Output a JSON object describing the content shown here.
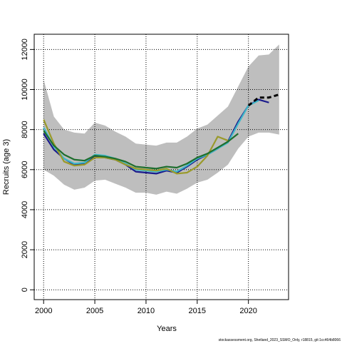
{
  "chart_data": {
    "type": "line",
    "xlabel": "Years",
    "ylabel": "Recruits (age 3)",
    "footer": "stockassessment.org, Shetland_2023_SSMO_Only, r18815, git:1cc464b8066",
    "x": [
      2000,
      2001,
      2002,
      2003,
      2004,
      2005,
      2006,
      2007,
      2008,
      2009,
      2010,
      2011,
      2012,
      2013,
      2014,
      2015,
      2016,
      2017,
      2018,
      2019,
      2020,
      2021,
      2022,
      2023
    ],
    "band": {
      "color": "#bebebe",
      "upper": [
        10500,
        8650,
        8000,
        7850,
        7800,
        8350,
        8200,
        7900,
        7650,
        7300,
        7250,
        7200,
        7350,
        7350,
        7650,
        8050,
        8250,
        8700,
        9150,
        10150,
        11150,
        11700,
        11750,
        12250
      ],
      "lower": [
        6000,
        5700,
        5250,
        5000,
        5100,
        5450,
        5500,
        5300,
        5100,
        4850,
        4850,
        4750,
        4900,
        4800,
        5050,
        5350,
        5500,
        5850,
        6250,
        7050,
        7650,
        7850,
        7850,
        7750
      ]
    },
    "series": [
      {
        "color": "#1a1a8c",
        "values": [
          7800,
          7000,
          6550,
          6250,
          6300,
          6650,
          6600,
          6500,
          6250,
          5900,
          5850,
          5800,
          5950,
          5850,
          6150,
          6500,
          6750,
          7050,
          7400,
          8400,
          9200,
          9500,
          9350,
          null
        ]
      },
      {
        "color": "#3fb8c8",
        "values": [
          8100,
          7150,
          6550,
          6300,
          6350,
          6750,
          6700,
          6550,
          6300,
          6000,
          5950,
          5900,
          6000,
          5900,
          6200,
          6550,
          6750,
          7050,
          7350,
          8300,
          9200,
          9450,
          null,
          null
        ]
      },
      {
        "color": "#9a9a2a",
        "values": [
          8500,
          7300,
          6400,
          6200,
          6250,
          6600,
          6600,
          6500,
          6250,
          6050,
          6000,
          5950,
          6050,
          5800,
          5850,
          6150,
          6700,
          7650,
          7450,
          null,
          null,
          null,
          null,
          null
        ]
      },
      {
        "color": "#1e6e2e",
        "values": [
          7950,
          7200,
          6750,
          6500,
          6450,
          6700,
          6650,
          6550,
          6400,
          6150,
          6100,
          6050,
          6150,
          6100,
          6300,
          6600,
          6800,
          7100,
          7400,
          7800,
          null,
          null,
          null,
          null
        ]
      },
      {
        "color": "#000000",
        "dashed": true,
        "values": [
          null,
          null,
          null,
          null,
          null,
          null,
          null,
          null,
          null,
          null,
          null,
          null,
          null,
          null,
          null,
          null,
          null,
          null,
          null,
          null,
          9200,
          9600,
          9600,
          9750
        ]
      }
    ],
    "xlim": [
      1999.08,
      2023.92
    ],
    "ylim": [
      -491,
      12761
    ],
    "xticks": [
      2000,
      2005,
      2010,
      2015,
      2020
    ],
    "yticks": [
      0,
      2000,
      4000,
      6000,
      8000,
      10000,
      12000
    ],
    "grid": true
  }
}
